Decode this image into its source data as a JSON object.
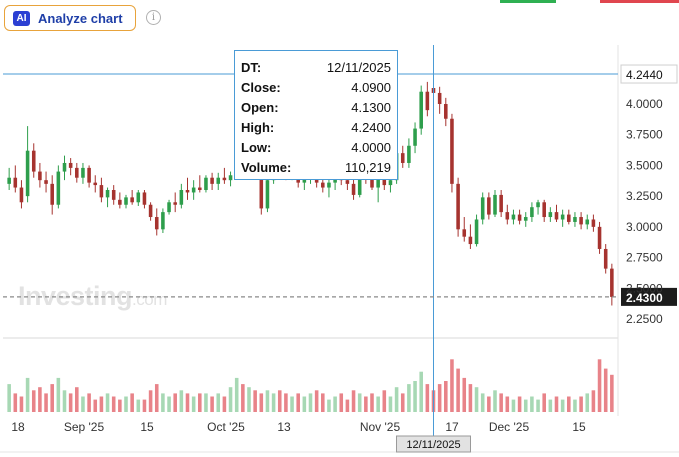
{
  "toolbar": {
    "analyze_badge": "AI",
    "analyze_label": "Analyze chart",
    "info_glyph": "i",
    "icons": [
      "ai-badge-icon",
      "info-icon"
    ]
  },
  "watermark": {
    "brand": "Investing",
    "suffix": ".com"
  },
  "tooltip": {
    "rows": [
      {
        "key": "DT:",
        "value": "12/11/2025"
      },
      {
        "key": "Close:",
        "value": "4.0900"
      },
      {
        "key": "Open:",
        "value": "4.1300"
      },
      {
        "key": "High:",
        "value": "4.2400"
      },
      {
        "key": "Low:",
        "value": "4.0000"
      },
      {
        "key": "Volume:",
        "value": "110,219"
      }
    ]
  },
  "chart_data": {
    "type": "candlestick",
    "y_range": [
      2.2,
      4.35
    ],
    "y_ticks": [
      "4.0000",
      "3.7500",
      "3.5000",
      "3.2500",
      "3.0000",
      "2.7500",
      "2.5000",
      "2.2500"
    ],
    "x_ticks": [
      "18",
      "Sep '25",
      "15",
      "Oct '25",
      "13",
      "Nov '25",
      "17",
      "Dec '25",
      "15"
    ],
    "crosshair": {
      "price_label": "4.2440",
      "price_value": 4.244,
      "date_label": "12/11/2025"
    },
    "last_price": {
      "label": "2.4300",
      "value": 2.43
    },
    "colors": {
      "up": "#2e9e4c",
      "down": "#a6332f",
      "vol_up": "#a7d8b4",
      "vol_down": "#e88389",
      "crosshair": "#4a9bd6"
    },
    "candles": [
      [
        3.35,
        3.48,
        3.3,
        3.4,
        0.45
      ],
      [
        3.4,
        3.5,
        3.28,
        3.32,
        0.3
      ],
      [
        3.32,
        3.38,
        3.15,
        3.2,
        0.25
      ],
      [
        3.25,
        3.82,
        3.2,
        3.62,
        0.55
      ],
      [
        3.62,
        3.68,
        3.4,
        3.45,
        0.35
      ],
      [
        3.45,
        3.52,
        3.32,
        3.38,
        0.4
      ],
      [
        3.38,
        3.45,
        3.28,
        3.35,
        0.3
      ],
      [
        3.35,
        3.42,
        3.1,
        3.18,
        0.45
      ],
      [
        3.18,
        3.5,
        3.15,
        3.45,
        0.55
      ],
      [
        3.45,
        3.58,
        3.38,
        3.52,
        0.35
      ],
      [
        3.52,
        3.56,
        3.42,
        3.48,
        0.3
      ],
      [
        3.48,
        3.52,
        3.36,
        3.4,
        0.4
      ],
      [
        3.4,
        3.52,
        3.35,
        3.48,
        0.25
      ],
      [
        3.48,
        3.5,
        3.32,
        3.36,
        0.3
      ],
      [
        3.36,
        3.42,
        3.28,
        3.34,
        0.2
      ],
      [
        3.34,
        3.4,
        3.2,
        3.24,
        0.25
      ],
      [
        3.24,
        3.32,
        3.16,
        3.3,
        0.3
      ],
      [
        3.3,
        3.34,
        3.18,
        3.22,
        0.25
      ],
      [
        3.22,
        3.28,
        3.15,
        3.18,
        0.2
      ],
      [
        3.18,
        3.26,
        3.15,
        3.24,
        0.25
      ],
      [
        3.24,
        3.3,
        3.18,
        3.2,
        0.3
      ],
      [
        3.2,
        3.3,
        3.17,
        3.28,
        0.2
      ],
      [
        3.28,
        3.3,
        3.15,
        3.18,
        0.2
      ],
      [
        3.18,
        3.2,
        3.05,
        3.08,
        0.35
      ],
      [
        3.08,
        3.15,
        2.93,
        2.98,
        0.45
      ],
      [
        2.98,
        3.15,
        2.95,
        3.12,
        0.3
      ],
      [
        3.12,
        3.22,
        3.1,
        3.2,
        0.25
      ],
      [
        3.2,
        3.28,
        3.12,
        3.18,
        0.3
      ],
      [
        3.18,
        3.35,
        3.15,
        3.3,
        0.35
      ],
      [
        3.3,
        3.4,
        3.22,
        3.28,
        0.3
      ],
      [
        3.28,
        3.38,
        3.22,
        3.32,
        0.25
      ],
      [
        3.32,
        3.42,
        3.28,
        3.3,
        0.3
      ],
      [
        3.3,
        3.42,
        3.28,
        3.4,
        0.3
      ],
      [
        3.4,
        3.44,
        3.3,
        3.35,
        0.25
      ],
      [
        3.35,
        3.44,
        3.3,
        3.4,
        0.3
      ],
      [
        3.4,
        3.48,
        3.35,
        3.38,
        0.25
      ],
      [
        3.38,
        3.45,
        3.33,
        3.42,
        0.4
      ],
      [
        3.42,
        3.65,
        3.4,
        3.6,
        0.55
      ],
      [
        3.6,
        3.68,
        3.5,
        3.55,
        0.45
      ],
      [
        3.55,
        3.68,
        3.48,
        3.58,
        0.4
      ],
      [
        3.58,
        3.62,
        3.42,
        3.45,
        0.35
      ],
      [
        3.45,
        3.55,
        3.1,
        3.15,
        0.3
      ],
      [
        3.15,
        3.4,
        3.12,
        3.38,
        0.35
      ],
      [
        3.38,
        3.58,
        3.35,
        3.55,
        0.3
      ],
      [
        3.55,
        3.62,
        3.42,
        3.48,
        0.35
      ],
      [
        3.48,
        3.55,
        3.38,
        3.45,
        0.3
      ],
      [
        3.45,
        3.55,
        3.38,
        3.48,
        0.25
      ],
      [
        3.48,
        3.52,
        3.32,
        3.36,
        0.3
      ],
      [
        3.36,
        3.48,
        3.3,
        3.4,
        0.25
      ],
      [
        3.4,
        3.52,
        3.35,
        3.45,
        0.3
      ],
      [
        3.45,
        3.5,
        3.32,
        3.36,
        0.35
      ],
      [
        3.36,
        3.42,
        3.28,
        3.32,
        0.3
      ],
      [
        3.32,
        3.4,
        3.24,
        3.36,
        0.2
      ],
      [
        3.36,
        3.44,
        3.3,
        3.4,
        0.25
      ],
      [
        3.4,
        3.46,
        3.34,
        3.38,
        0.3
      ],
      [
        3.38,
        3.44,
        3.3,
        3.35,
        0.2
      ],
      [
        3.35,
        3.4,
        3.22,
        3.26,
        0.35
      ],
      [
        3.26,
        3.5,
        3.24,
        3.46,
        0.3
      ],
      [
        3.46,
        3.52,
        3.35,
        3.4,
        0.25
      ],
      [
        3.4,
        3.46,
        3.3,
        3.32,
        0.3
      ],
      [
        3.32,
        3.44,
        3.2,
        3.42,
        0.25
      ],
      [
        3.42,
        3.5,
        3.3,
        3.34,
        0.35
      ],
      [
        3.34,
        3.42,
        3.28,
        3.38,
        0.25
      ],
      [
        3.38,
        3.64,
        3.35,
        3.6,
        0.4
      ],
      [
        3.6,
        3.66,
        3.48,
        3.52,
        0.3
      ],
      [
        3.52,
        3.72,
        3.48,
        3.66,
        0.45
      ],
      [
        3.66,
        3.85,
        3.6,
        3.8,
        0.5
      ],
      [
        3.8,
        4.15,
        3.75,
        4.1,
        0.65
      ],
      [
        4.1,
        4.18,
        3.9,
        3.95,
        0.45
      ],
      [
        4.13,
        4.24,
        4.0,
        4.09,
        0.35
      ],
      [
        4.09,
        4.14,
        3.92,
        4.0,
        0.45
      ],
      [
        4.0,
        4.05,
        3.82,
        3.88,
        0.5
      ],
      [
        3.88,
        3.92,
        3.28,
        3.35,
        0.85
      ],
      [
        3.35,
        3.4,
        2.92,
        2.98,
        0.7
      ],
      [
        2.98,
        3.08,
        2.88,
        2.92,
        0.55
      ],
      [
        2.92,
        3.02,
        2.82,
        2.86,
        0.45
      ],
      [
        2.86,
        3.1,
        2.84,
        3.06,
        0.4
      ],
      [
        3.06,
        3.28,
        3.02,
        3.24,
        0.3
      ],
      [
        3.24,
        3.28,
        3.06,
        3.1,
        0.25
      ],
      [
        3.1,
        3.3,
        3.08,
        3.26,
        0.35
      ],
      [
        3.26,
        3.3,
        3.08,
        3.12,
        0.3
      ],
      [
        3.12,
        3.18,
        3.02,
        3.06,
        0.25
      ],
      [
        3.06,
        3.14,
        3.02,
        3.1,
        0.2
      ],
      [
        3.1,
        3.14,
        3.02,
        3.05,
        0.25
      ],
      [
        3.05,
        3.12,
        3.0,
        3.08,
        0.2
      ],
      [
        3.08,
        3.2,
        3.04,
        3.16,
        0.25
      ],
      [
        3.16,
        3.22,
        3.1,
        3.2,
        0.2
      ],
      [
        3.2,
        3.22,
        3.04,
        3.08,
        0.3
      ],
      [
        3.08,
        3.16,
        3.04,
        3.12,
        0.2
      ],
      [
        3.12,
        3.18,
        3.04,
        3.06,
        0.25
      ],
      [
        3.06,
        3.14,
        3.0,
        3.1,
        0.2
      ],
      [
        3.1,
        3.14,
        3.02,
        3.04,
        0.25
      ],
      [
        3.04,
        3.12,
        3.0,
        3.08,
        0.2
      ],
      [
        3.08,
        3.12,
        2.98,
        3.02,
        0.25
      ],
      [
        3.02,
        3.1,
        2.98,
        3.06,
        0.3
      ],
      [
        3.06,
        3.1,
        2.96,
        3.0,
        0.35
      ],
      [
        3.0,
        3.04,
        2.78,
        2.82,
        0.85
      ],
      [
        2.82,
        2.86,
        2.62,
        2.66,
        0.7
      ],
      [
        2.66,
        2.7,
        2.36,
        2.43,
        0.6
      ]
    ]
  }
}
